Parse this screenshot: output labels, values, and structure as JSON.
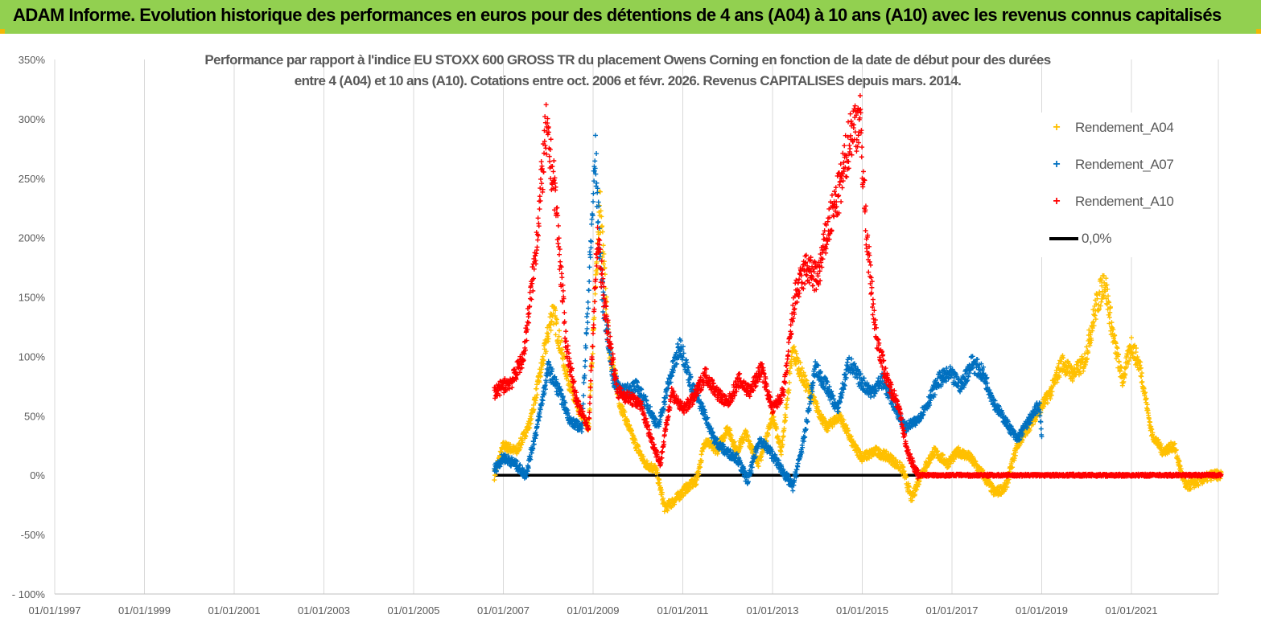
{
  "header": {
    "title": "ADAM Informe. Evolution historique des performances en euros pour des détentions de 4 ans (A04) à 10 ans (A10) avec les revenus connus capitalisés"
  },
  "colors": {
    "banner": "#92d050",
    "a04": "#ffc000",
    "a07": "#0070c0",
    "a10": "#ff0000",
    "zero": "#000000",
    "grid": "#d9d9d9",
    "axis_text": "#595959"
  },
  "chart_data": {
    "type": "scatter",
    "title_line1": "Performance par rapport à l'indice EU STOXX 600 GROSS TR  du placement Owens Corning en fonction de la date de début pour des durées",
    "title_line2": "entre 4 (A04) et 10 ans (A10). Cotations entre oct. 2006 et févr. 2026. Revenus CAPITALISES depuis mars. 2014.",
    "x_tick_labels": [
      "01/01/1997",
      "01/01/1999",
      "01/01/2001",
      "01/01/2003",
      "01/01/2005",
      "01/01/2007",
      "01/01/2009",
      "01/01/2011",
      "01/01/2013",
      "01/01/2015",
      "01/01/2017",
      "01/01/2019",
      "01/01/2021"
    ],
    "x_tick_years": [
      1997,
      1999,
      2001,
      2003,
      2005,
      2007,
      2009,
      2011,
      2013,
      2015,
      2017,
      2019,
      2021
    ],
    "xlim": [
      1997,
      2023.0
    ],
    "y_tick_labels": [
      "- 100%",
      "-50%",
      "0%",
      "50%",
      "100%",
      "150%",
      "200%",
      "250%",
      "300%",
      "350%"
    ],
    "y_tick_values": [
      -100,
      -50,
      0,
      50,
      100,
      150,
      200,
      250,
      300,
      350
    ],
    "ylim": [
      -100,
      350
    ],
    "legend_position": "top-right",
    "series": [
      {
        "name": "Rendement_A04",
        "color": "#ffc000",
        "marker": "+",
        "x": [
          2006.8,
          2007.0,
          2007.3,
          2007.6,
          2007.9,
          2008.1,
          2008.35,
          2008.6,
          2008.9,
          2009.15,
          2009.35,
          2009.6,
          2009.9,
          2010.15,
          2010.4,
          2010.6,
          2010.85,
          2011.1,
          2011.3,
          2011.5,
          2011.75,
          2012.0,
          2012.2,
          2012.4,
          2012.7,
          2013.0,
          2013.2,
          2013.45,
          2013.7,
          2013.95,
          2014.2,
          2014.5,
          2014.8,
          2015.0,
          2015.3,
          2015.6,
          2015.9,
          2016.1,
          2016.3,
          2016.6,
          2016.9,
          2017.15,
          2017.4,
          2017.7,
          2017.95,
          2018.2,
          2018.45,
          2018.7,
          2018.95,
          2019.2,
          2019.45,
          2019.7,
          2019.95,
          2020.2,
          2020.4,
          2020.6,
          2020.8,
          2021.0,
          2021.2,
          2021.45,
          2021.7,
          2021.95,
          2022.2,
          2022.5,
          2022.8,
          2023.0
        ],
        "y": [
          0,
          25,
          20,
          45,
          100,
          140,
          95,
          60,
          40,
          230,
          110,
          60,
          30,
          10,
          5,
          -28,
          -20,
          -10,
          -5,
          30,
          20,
          40,
          20,
          35,
          10,
          50,
          20,
          105,
          80,
          60,
          40,
          50,
          25,
          15,
          20,
          15,
          5,
          -20,
          0,
          20,
          10,
          20,
          15,
          0,
          -15,
          -10,
          25,
          40,
          55,
          70,
          95,
          85,
          95,
          140,
          165,
          115,
          80,
          110,
          90,
          35,
          20,
          25,
          -10,
          -5,
          0,
          0
        ]
      },
      {
        "name": "Rendement_A07",
        "color": "#0070c0",
        "marker": "+",
        "x": [
          2006.8,
          2007.0,
          2007.25,
          2007.5,
          2007.75,
          2008.0,
          2008.25,
          2008.5,
          2008.75,
          2009.05,
          2009.2,
          2009.45,
          2009.7,
          2009.95,
          2010.2,
          2010.45,
          2010.7,
          2010.95,
          2011.2,
          2011.45,
          2011.7,
          2011.95,
          2012.2,
          2012.45,
          2012.7,
          2012.95,
          2013.2,
          2013.45,
          2013.7,
          2013.95,
          2014.2,
          2014.45,
          2014.7,
          2014.95,
          2015.2,
          2015.45,
          2015.7,
          2015.95,
          2016.2,
          2016.45,
          2016.7,
          2016.95,
          2017.2,
          2017.45,
          2017.7,
          2017.95,
          2018.2,
          2018.45,
          2018.7,
          2018.95,
          2019.0
        ],
        "y": [
          5,
          15,
          10,
          0,
          40,
          90,
          70,
          45,
          40,
          270,
          155,
          80,
          70,
          75,
          60,
          40,
          80,
          110,
          75,
          55,
          30,
          20,
          15,
          -5,
          30,
          20,
          5,
          -10,
          30,
          90,
          75,
          55,
          95,
          80,
          70,
          80,
          60,
          40,
          45,
          60,
          80,
          85,
          75,
          95,
          85,
          60,
          45,
          30,
          45,
          60,
          30
        ]
      },
      {
        "name": "Rendement_A10",
        "color": "#ff0000",
        "marker": "+",
        "x": [
          2006.8,
          2007.0,
          2007.2,
          2007.45,
          2007.7,
          2007.95,
          2008.15,
          2008.4,
          2008.65,
          2008.9,
          2009.1,
          2009.3,
          2009.55,
          2009.8,
          2010.05,
          2010.3,
          2010.5,
          2010.75,
          2011.0,
          2011.25,
          2011.5,
          2011.75,
          2012.0,
          2012.25,
          2012.5,
          2012.75,
          2013.0,
          2013.25,
          2013.5,
          2013.75,
          2014.0,
          2014.25,
          2014.5,
          2014.75,
          2014.95,
          2015.1,
          2015.3,
          2015.55,
          2015.8,
          2016.0,
          2016.25,
          2016.5,
          2017.0,
          2018.0,
          2019.0,
          2020.0,
          2021.0,
          2022.0,
          2023.0
        ],
        "y": [
          70,
          75,
          80,
          100,
          180,
          290,
          240,
          110,
          60,
          40,
          200,
          130,
          70,
          65,
          60,
          30,
          10,
          70,
          55,
          65,
          85,
          70,
          60,
          80,
          70,
          90,
          55,
          70,
          150,
          175,
          165,
          210,
          240,
          290,
          300,
          200,
          120,
          80,
          60,
          20,
          0,
          0,
          0,
          0,
          0,
          0,
          0,
          0,
          0
        ]
      },
      {
        "name": "0,0%",
        "color": "#000000",
        "marker": "line",
        "x": [
          2006.8,
          2023.0
        ],
        "y": [
          0,
          0
        ]
      }
    ]
  },
  "legend": {
    "a04": "Rendement_A04",
    "a07": "Rendement_A07",
    "a10": "Rendement_A10",
    "zero": "0,0%"
  }
}
